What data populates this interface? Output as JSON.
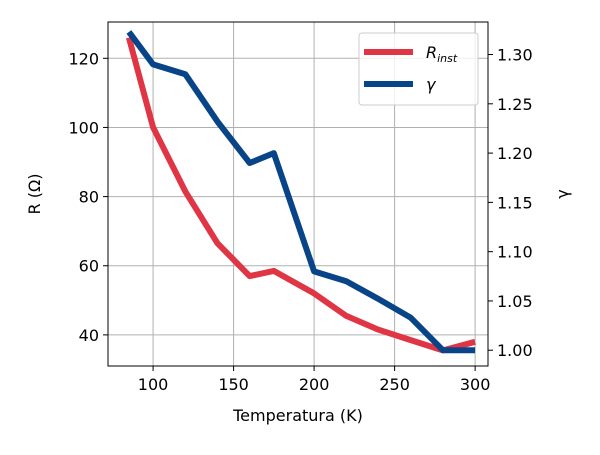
{
  "chart_data": {
    "type": "line",
    "x": [
      85,
      100,
      120,
      140,
      160,
      175,
      200,
      220,
      240,
      260,
      280,
      300
    ],
    "xlabel": "Temperatura (K)",
    "ylabel": "R (Ω)",
    "y2label": "γ",
    "xlim": [
      72,
      308
    ],
    "ylim": [
      31,
      130.5
    ],
    "y2lim": [
      0.984,
      1.333
    ],
    "xticks": [
      100,
      150,
      200,
      250,
      300
    ],
    "yticks": [
      40,
      60,
      80,
      100,
      120
    ],
    "y2ticks": [
      1.0,
      1.05,
      1.1,
      1.15,
      1.2,
      1.25,
      1.3
    ],
    "xtick_labels": [
      "100",
      "150",
      "200",
      "250",
      "300"
    ],
    "ytick_labels": [
      "40",
      "60",
      "80",
      "100",
      "120"
    ],
    "y2tick_labels": [
      "1.00",
      "1.05",
      "1.10",
      "1.15",
      "1.20",
      "1.25",
      "1.30"
    ],
    "grid": true,
    "legend_position": "top-right",
    "series": [
      {
        "name_main": "R",
        "name_sub": "inst",
        "axis": "left",
        "color": "#e03545",
        "values": [
          126,
          100,
          81.5,
          66.5,
          57,
          58.5,
          52,
          45.5,
          41.5,
          38.5,
          35.5,
          38
        ]
      },
      {
        "name_main": "γ",
        "name_sub": "",
        "axis": "right",
        "color": "#084488",
        "values": [
          1.323,
          1.29,
          1.28,
          1.232,
          1.19,
          1.2,
          1.08,
          1.07,
          1.052,
          1.033,
          1.0,
          1.0
        ]
      }
    ]
  }
}
